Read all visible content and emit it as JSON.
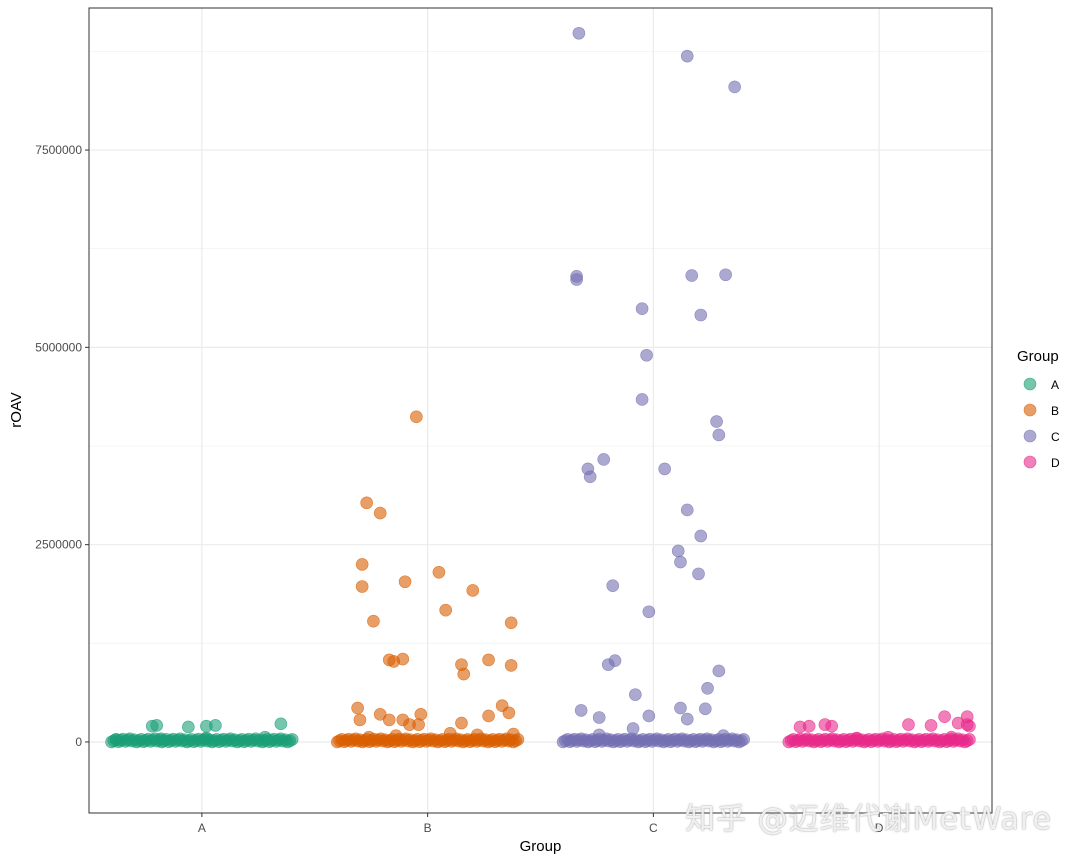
{
  "chart_data": {
    "type": "scatter",
    "title": "",
    "xlabel": "Group",
    "ylabel": "rOAV",
    "categories": [
      "A",
      "B",
      "C",
      "D"
    ],
    "ylim": [
      -900000,
      9300000
    ],
    "yticks": [
      0,
      2500000,
      5000000,
      7500000
    ],
    "ytick_labels": [
      "0",
      "2500000",
      "5000000",
      "7500000"
    ],
    "grid": true,
    "legend": {
      "title": "Group",
      "position": "right",
      "entries": [
        "A",
        "B",
        "C",
        "D"
      ]
    },
    "colors": {
      "A": "#1b9e77",
      "B": "#d95f02",
      "C": "#7570b3",
      "D": "#e7298a"
    },
    "jitter_width": 0.4,
    "series": [
      {
        "name": "A",
        "points": [
          [
            -0.38,
            30000
          ],
          [
            -0.22,
            200000
          ],
          [
            -0.2,
            210000
          ],
          [
            -0.06,
            190000
          ],
          [
            0.02,
            200000
          ],
          [
            0.06,
            210000
          ],
          [
            0.35,
            230000
          ],
          [
            0.28,
            60000
          ],
          [
            0.02,
            50000
          ],
          [
            -0.18,
            40000
          ]
        ],
        "baseline_count": 80
      },
      {
        "name": "B",
        "points": [
          [
            -0.05,
            4120000
          ],
          [
            -0.27,
            3030000
          ],
          [
            -0.21,
            2900000
          ],
          [
            -0.29,
            2250000
          ],
          [
            0.05,
            2150000
          ],
          [
            -0.1,
            2030000
          ],
          [
            -0.29,
            1970000
          ],
          [
            0.2,
            1920000
          ],
          [
            0.37,
            1510000
          ],
          [
            0.08,
            1670000
          ],
          [
            -0.24,
            1530000
          ],
          [
            -0.17,
            1040000
          ],
          [
            -0.15,
            1020000
          ],
          [
            -0.11,
            1050000
          ],
          [
            0.15,
            980000
          ],
          [
            0.27,
            1040000
          ],
          [
            0.37,
            970000
          ],
          [
            0.16,
            860000
          ],
          [
            -0.31,
            430000
          ],
          [
            -0.3,
            280000
          ],
          [
            -0.21,
            350000
          ],
          [
            -0.17,
            280000
          ],
          [
            -0.11,
            280000
          ],
          [
            -0.08,
            220000
          ],
          [
            -0.04,
            220000
          ],
          [
            -0.03,
            350000
          ],
          [
            0.15,
            240000
          ],
          [
            0.27,
            330000
          ],
          [
            0.33,
            460000
          ],
          [
            0.36,
            370000
          ],
          [
            0.38,
            100000
          ],
          [
            0.22,
            90000
          ],
          [
            0.1,
            110000
          ],
          [
            -0.14,
            80000
          ],
          [
            -0.26,
            60000
          ]
        ],
        "baseline_count": 80
      },
      {
        "name": "C",
        "points": [
          [
            -0.33,
            8980000
          ],
          [
            0.15,
            8690000
          ],
          [
            0.36,
            8300000
          ],
          [
            -0.34,
            5900000
          ],
          [
            -0.34,
            5860000
          ],
          [
            0.17,
            5910000
          ],
          [
            0.32,
            5920000
          ],
          [
            -0.05,
            5490000
          ],
          [
            0.21,
            5410000
          ],
          [
            -0.03,
            4900000
          ],
          [
            -0.05,
            4340000
          ],
          [
            0.28,
            4060000
          ],
          [
            0.29,
            3890000
          ],
          [
            -0.22,
            3580000
          ],
          [
            -0.29,
            3460000
          ],
          [
            -0.28,
            3360000
          ],
          [
            0.05,
            3460000
          ],
          [
            0.15,
            2940000
          ],
          [
            0.21,
            2610000
          ],
          [
            0.11,
            2420000
          ],
          [
            0.12,
            2280000
          ],
          [
            0.2,
            2130000
          ],
          [
            -0.18,
            1980000
          ],
          [
            -0.02,
            1650000
          ],
          [
            0.29,
            900000
          ],
          [
            -0.17,
            1030000
          ],
          [
            -0.2,
            980000
          ],
          [
            0.24,
            680000
          ],
          [
            -0.08,
            600000
          ],
          [
            0.12,
            430000
          ],
          [
            -0.32,
            400000
          ],
          [
            -0.24,
            310000
          ],
          [
            0.23,
            420000
          ],
          [
            0.15,
            290000
          ],
          [
            -0.02,
            330000
          ],
          [
            -0.09,
            170000
          ],
          [
            -0.24,
            90000
          ],
          [
            0.31,
            80000
          ]
        ],
        "baseline_count": 80
      },
      {
        "name": "D",
        "points": [
          [
            -0.35,
            190000
          ],
          [
            -0.31,
            200000
          ],
          [
            -0.24,
            220000
          ],
          [
            -0.21,
            200000
          ],
          [
            0.13,
            220000
          ],
          [
            0.23,
            210000
          ],
          [
            0.29,
            320000
          ],
          [
            0.35,
            240000
          ],
          [
            0.39,
            220000
          ],
          [
            0.39,
            320000
          ],
          [
            0.4,
            200000
          ],
          [
            0.04,
            60000
          ],
          [
            -0.1,
            50000
          ],
          [
            0.32,
            60000
          ]
        ],
        "baseline_count": 80
      }
    ]
  },
  "watermark": "知乎 @迈维代谢MetWare"
}
